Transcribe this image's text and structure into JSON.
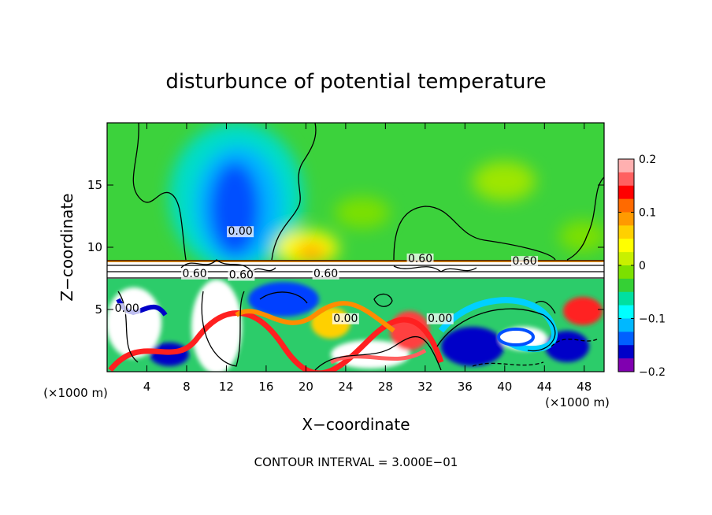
{
  "chart_data": {
    "type": "heatmap",
    "title": "disturbunce of potential temperature",
    "xlabel": "X−coordinate",
    "ylabel": "Z−coordinate",
    "x_unit": "(×1000 m)",
    "x_unit_right": "(×1000 m)",
    "y_unit": "(×1000 m)",
    "xlim": [
      0,
      50
    ],
    "ylim": [
      0,
      20
    ],
    "x_ticks": [
      4,
      8,
      12,
      16,
      20,
      24,
      28,
      32,
      36,
      40,
      44,
      48
    ],
    "y_ticks": [
      5,
      10,
      15
    ],
    "colorbar": {
      "range": [
        -0.2,
        0.2
      ],
      "tick_values": [
        0.2,
        0.1,
        0,
        -0.1,
        -0.2
      ],
      "tick_labels": [
        "0.2",
        "0.1",
        "0",
        "−0.1",
        "−0.2"
      ],
      "colors": [
        "#ffb0b0",
        "#ff6060",
        "#ff0000",
        "#ff6a00",
        "#ff9a00",
        "#ffd000",
        "#ffff00",
        "#c8f000",
        "#7ce000",
        "#35d035",
        "#00e0a0",
        "#00ffff",
        "#00b8ff",
        "#0060ff",
        "#0000c8",
        "#8000b0"
      ]
    },
    "contour_labels": [
      {
        "text": "0.00",
        "x": 13.4,
        "z": 11.0
      },
      {
        "text": "0.60",
        "x": 31.5,
        "z": 8.8
      },
      {
        "text": "0.60",
        "x": 42.0,
        "z": 8.6
      },
      {
        "text": "0.60",
        "x": 8.8,
        "z": 7.6
      },
      {
        "text": "0.60",
        "x": 13.5,
        "z": 7.5
      },
      {
        "text": "0.60",
        "x": 22.0,
        "z": 7.6
      },
      {
        "text": "0.00",
        "x": 2.0,
        "z": 4.8
      },
      {
        "text": "0.00",
        "x": 24.0,
        "z": 4.0
      },
      {
        "text": "0.00",
        "x": 33.5,
        "z": 4.0
      }
    ],
    "contour_interval_label": "CONTOUR INTERVAL = 3.000E−01"
  }
}
